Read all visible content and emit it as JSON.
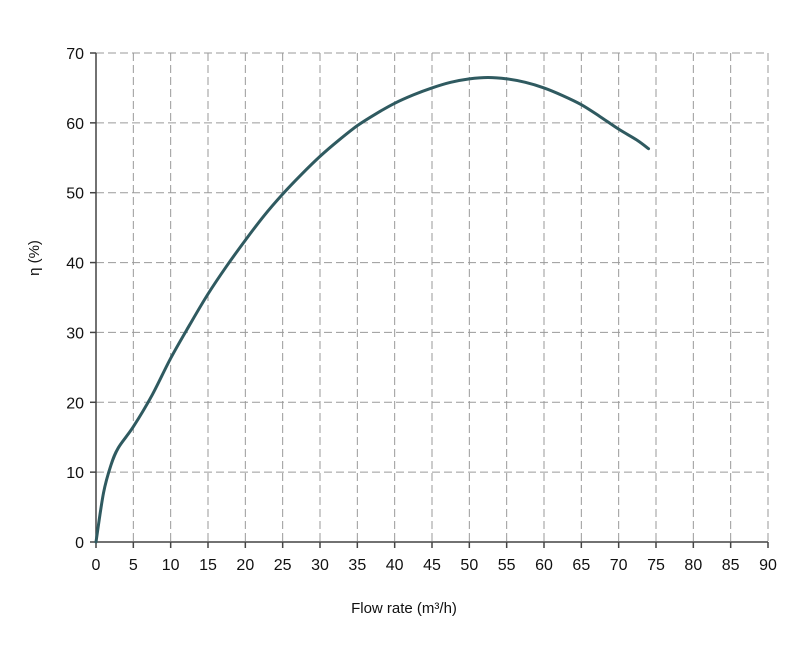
{
  "chart_data": {
    "type": "line",
    "title": "",
    "xlabel": "Flow rate (m³/h)",
    "ylabel": "η (%)",
    "xlim": [
      0,
      90
    ],
    "ylim": [
      0,
      70
    ],
    "xticks": [
      0,
      5,
      10,
      15,
      20,
      25,
      30,
      35,
      40,
      45,
      50,
      55,
      60,
      65,
      70,
      75,
      80,
      85,
      90
    ],
    "yticks": [
      0,
      10,
      20,
      30,
      40,
      50,
      60,
      70
    ],
    "grid": true,
    "legend": "none",
    "series": [
      {
        "color": "#2f5a60",
        "x": [
          0,
          1,
          2,
          3,
          5,
          7.5,
          10,
          12.5,
          15,
          17.5,
          20,
          22.5,
          25,
          27.5,
          30,
          32.5,
          35,
          37.5,
          40,
          42.5,
          45,
          47.5,
          50,
          52.5,
          55,
          57.5,
          60,
          62.5,
          65,
          67.5,
          70,
          72.5,
          74
        ],
        "y": [
          0,
          7,
          11,
          13.5,
          16.5,
          21,
          26.3,
          31,
          35.5,
          39.5,
          43.2,
          46.7,
          49.8,
          52.6,
          55.2,
          57.5,
          59.6,
          61.3,
          62.8,
          64,
          65,
          65.8,
          66.3,
          66.5,
          66.3,
          65.8,
          65,
          63.9,
          62.6,
          60.9,
          59.1,
          57.5,
          56.3
        ]
      }
    ]
  }
}
